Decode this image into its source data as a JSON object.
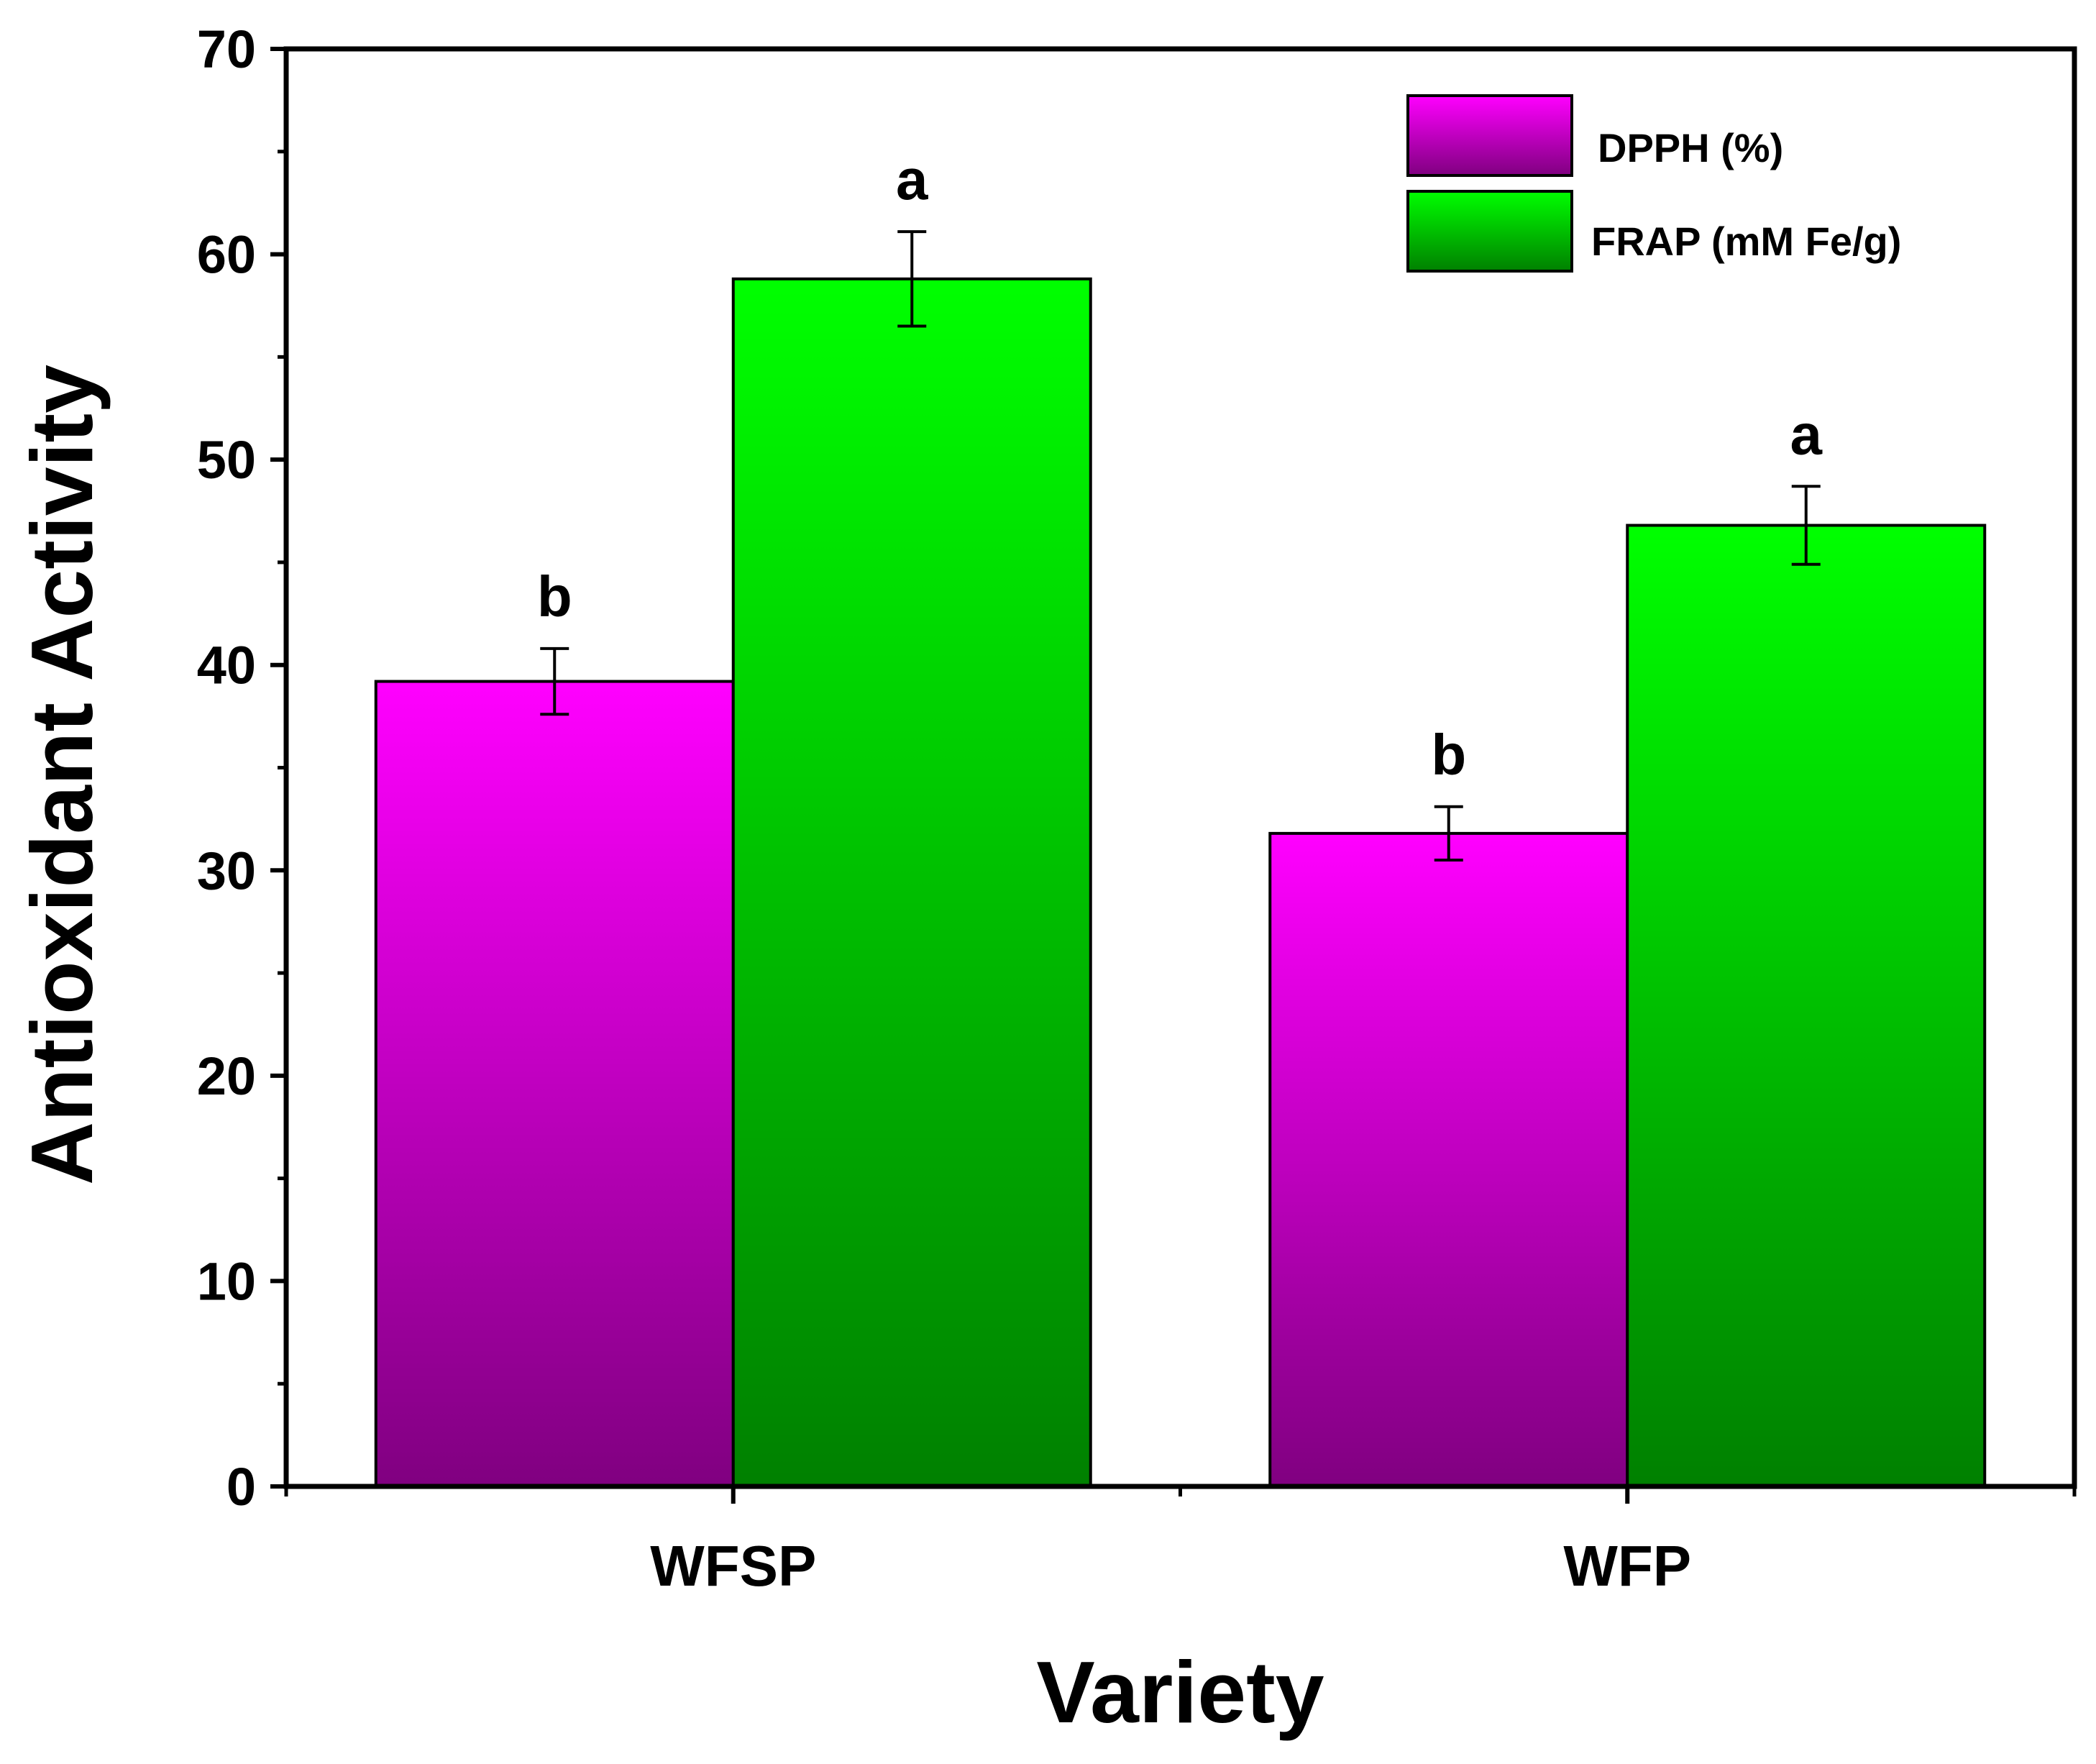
{
  "chart_data": {
    "type": "bar",
    "title": "",
    "xlabel": "Variety",
    "ylabel": "Antioxidant Activity",
    "ylim": [
      0,
      70
    ],
    "y_major_ticks": [
      0,
      10,
      20,
      30,
      40,
      50,
      60,
      70
    ],
    "y_minor_step": 5,
    "categories": [
      "WFSP",
      "WFP"
    ],
    "series": [
      {
        "name": "DPPH (%)",
        "values": [
          39.2,
          31.8
        ],
        "errors": [
          1.6,
          1.3
        ],
        "significance": [
          "b",
          "b"
        ],
        "color_top": "#ff00ff",
        "color_bottom": "#800080"
      },
      {
        "name": "FRAP (mM Fe/g)",
        "values": [
          58.8,
          46.8
        ],
        "errors": [
          2.3,
          1.9
        ],
        "significance": [
          "a",
          "a"
        ],
        "color_top": "#00ff00",
        "color_bottom": "#008000"
      }
    ],
    "legend_position": "top-right",
    "grid": false
  }
}
